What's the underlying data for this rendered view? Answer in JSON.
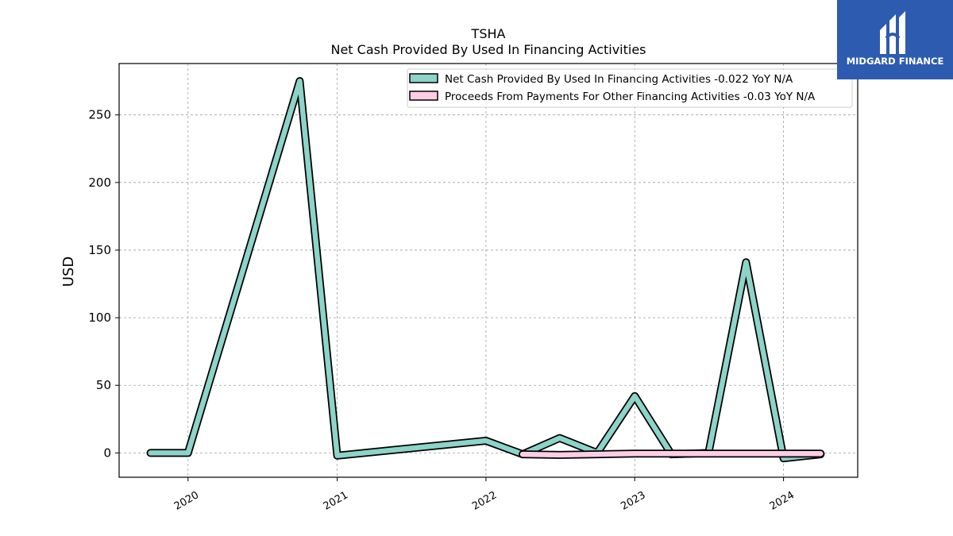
{
  "logo": {
    "text": "MIDGARD FINANCE"
  },
  "chart_data": {
    "type": "line",
    "title": "TSHA",
    "subtitle": "Net Cash Provided By Used In Financing Activities",
    "xlabel": "",
    "ylabel": "USD",
    "ylim": [
      -18,
      288
    ],
    "yticks": [
      0,
      50,
      100,
      150,
      200,
      250
    ],
    "xlim": [
      "2019-07-16",
      "2024-07-01"
    ],
    "xticks": [
      "2020",
      "2021",
      "2022",
      "2023",
      "2024"
    ],
    "grid": true,
    "legend_position": "top-right",
    "series": [
      {
        "name": "Net Cash Provided By Used In Financing Activities  -0.022 YoY N/A",
        "color": "#8dd3c7",
        "points": [
          [
            "2019-10-01",
            0
          ],
          [
            "2020-01-01",
            0
          ],
          [
            "2020-10-01",
            275
          ],
          [
            "2021-01-01",
            -2
          ],
          [
            "2022-01-01",
            9
          ],
          [
            "2022-04-01",
            -1
          ],
          [
            "2022-07-01",
            11
          ],
          [
            "2022-10-01",
            0
          ],
          [
            "2023-01-01",
            42
          ],
          [
            "2023-04-01",
            -1
          ],
          [
            "2023-07-01",
            0
          ],
          [
            "2023-10-01",
            141
          ],
          [
            "2024-01-01",
            -4
          ],
          [
            "2024-04-01",
            -1
          ]
        ]
      },
      {
        "name": "Proceeds From Payments For Other Financing Activities  -0.03 YoY N/A",
        "color": "#fccde5",
        "points": [
          [
            "2022-04-01",
            -1
          ],
          [
            "2022-07-01",
            -1.5
          ],
          [
            "2022-10-01",
            -1
          ],
          [
            "2023-01-01",
            -0.5
          ],
          [
            "2023-04-01",
            -0.5
          ],
          [
            "2023-07-01",
            -0.5
          ],
          [
            "2023-10-01",
            -0.5
          ],
          [
            "2024-01-01",
            -0.5
          ],
          [
            "2024-04-01",
            -0.5
          ]
        ]
      }
    ]
  }
}
